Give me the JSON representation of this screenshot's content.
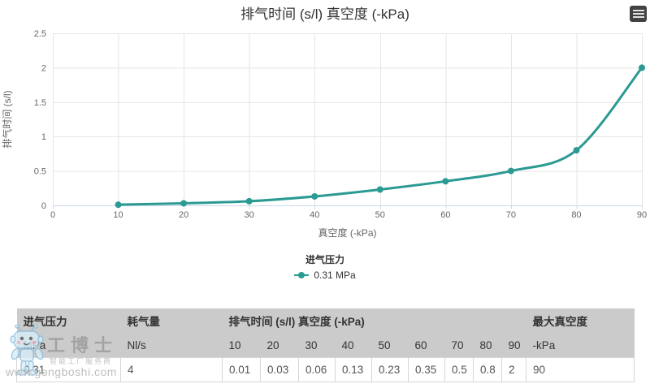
{
  "chart": {
    "title": "排气时间 (s/l) 真空度 (-kPa)",
    "colors": {
      "series": "#2b9a92",
      "grid": "#e6e6e6",
      "axis_line": "#ccd6eb",
      "label": "#666666",
      "title": "#333333",
      "table_header_bg": "#cbcbcb",
      "table_border": "#d6d6d6"
    },
    "legend": {
      "title": "进气压力",
      "items": [
        {
          "label": "0.31 MPa",
          "color": "#2b9a92"
        }
      ]
    }
  },
  "chart_data": {
    "type": "line",
    "title": "排气时间 (s/l) 真空度 (-kPa)",
    "xlabel": "真空度 (-kPa)",
    "ylabel": "排气时间 (s/l)",
    "x": [
      10,
      20,
      30,
      40,
      50,
      60,
      70,
      80,
      90
    ],
    "series": [
      {
        "name": "0.31 MPa",
        "color": "#2b9a92",
        "values": [
          0.01,
          0.03,
          0.06,
          0.13,
          0.23,
          0.35,
          0.5,
          0.8,
          2
        ]
      }
    ],
    "xlim": [
      0,
      90
    ],
    "ylim": [
      0,
      2.5
    ],
    "xticks": [
      0,
      10,
      20,
      30,
      40,
      50,
      60,
      70,
      80,
      90
    ],
    "yticks": [
      0,
      0.5,
      1,
      1.5,
      2,
      2.5
    ],
    "grid": true,
    "legend_position": "bottom",
    "legend_title": "进气压力"
  },
  "table": {
    "header_row1": [
      {
        "label": "进气压力",
        "colspan": 1
      },
      {
        "label": "耗气量",
        "colspan": 1
      },
      {
        "label": "排气时间 (s/l) 真空度 (-kPa)",
        "colspan": 9
      },
      {
        "label": "最大真空度",
        "colspan": 1
      }
    ],
    "header_row2": [
      "MPa",
      "Nl/s",
      "10",
      "20",
      "30",
      "40",
      "50",
      "60",
      "70",
      "80",
      "90",
      "-kPa"
    ],
    "rows": [
      [
        "0.31",
        "4",
        "0.01",
        "0.03",
        "0.06",
        "0.13",
        "0.23",
        "0.35",
        "0.5",
        "0.8",
        "2",
        "90"
      ]
    ]
  },
  "watermark": {
    "brand": "工博士",
    "tagline": "智能工厂服务商",
    "url": "www.gongboshi.com"
  }
}
